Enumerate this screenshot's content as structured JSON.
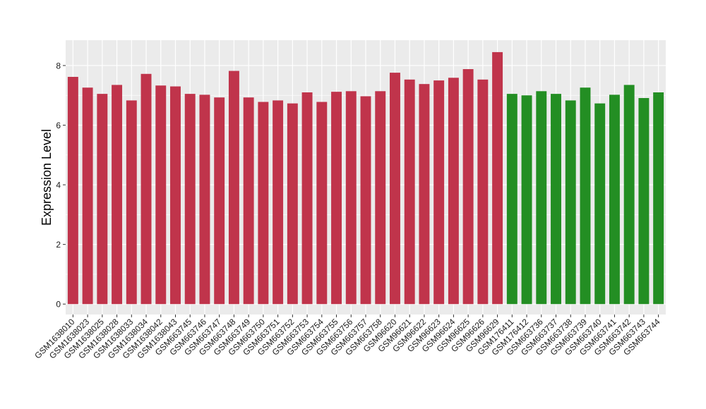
{
  "chart_data": {
    "type": "bar",
    "title": "",
    "xlabel": "",
    "ylabel": "Expression Level",
    "ylim": [
      -0.35,
      8.85
    ],
    "yticks": [
      0,
      2,
      4,
      6,
      8
    ],
    "grid": true,
    "legend": "none",
    "colors": {
      "group_a": "#c0344b",
      "group_b": "#238e23",
      "panel": "#ebebeb",
      "gridline": "#ffffff"
    },
    "categories": [
      "GSM1638010",
      "GSM1638023",
      "GSM1638025",
      "GSM1638028",
      "GSM1638033",
      "GSM1638034",
      "GSM1638042",
      "GSM1638043",
      "GSM663745",
      "GSM663746",
      "GSM663747",
      "GSM663748",
      "GSM663749",
      "GSM663750",
      "GSM663751",
      "GSM663752",
      "GSM663753",
      "GSM663754",
      "GSM663755",
      "GSM663756",
      "GSM663757",
      "GSM663758",
      "GSM96620",
      "GSM96621",
      "GSM96622",
      "GSM96623",
      "GSM96624",
      "GSM96625",
      "GSM96626",
      "GSM96629",
      "GSM176411",
      "GSM176412",
      "GSM663736",
      "GSM663737",
      "GSM663738",
      "GSM663739",
      "GSM663740",
      "GSM663741",
      "GSM663742",
      "GSM663743",
      "GSM663744"
    ],
    "values": [
      7.62,
      7.26,
      7.05,
      7.35,
      6.83,
      7.72,
      7.33,
      7.3,
      7.05,
      7.02,
      6.93,
      7.82,
      6.93,
      6.78,
      6.83,
      6.73,
      7.1,
      6.78,
      7.12,
      7.14,
      6.97,
      7.14,
      7.76,
      7.53,
      7.38,
      7.5,
      7.59,
      7.88,
      7.53,
      8.45,
      7.05,
      7.0,
      7.14,
      7.05,
      6.83,
      7.26,
      6.73,
      7.02,
      7.35,
      6.91,
      7.1
    ],
    "groups": [
      "a",
      "a",
      "a",
      "a",
      "a",
      "a",
      "a",
      "a",
      "a",
      "a",
      "a",
      "a",
      "a",
      "a",
      "a",
      "a",
      "a",
      "a",
      "a",
      "a",
      "a",
      "a",
      "a",
      "a",
      "a",
      "a",
      "a",
      "a",
      "a",
      "a",
      "b",
      "b",
      "b",
      "b",
      "b",
      "b",
      "b",
      "b",
      "b",
      "b",
      "b"
    ]
  }
}
